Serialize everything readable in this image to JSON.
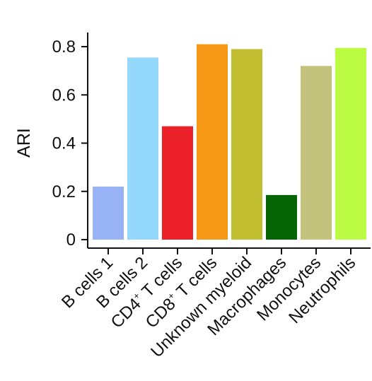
{
  "chart_data": {
    "type": "bar",
    "title": "",
    "xlabel": "",
    "ylabel": "ARI",
    "ylim": [
      0,
      0.85
    ],
    "yticks": [
      0,
      0.2,
      0.4,
      0.6,
      0.8
    ],
    "ytick_labels": [
      "0",
      "0.2",
      "0.4",
      "0.6",
      "0.8"
    ],
    "grid": false,
    "legend": "none",
    "categories": [
      {
        "label": "B cells 1",
        "base": "B cells 1",
        "sup": ""
      },
      {
        "label": "B cells 2",
        "base": "B cells 2",
        "sup": ""
      },
      {
        "label": "CD4+ T cells",
        "base": "CD4",
        "sup": "+",
        "rest": " T cells"
      },
      {
        "label": "CD8+ T cells",
        "base": "CD8",
        "sup": "+",
        "rest": " T cells"
      },
      {
        "label": "Unknown myeloid",
        "base": "Unknown myeloid",
        "sup": ""
      },
      {
        "label": "Macrophages",
        "base": "Macrophages",
        "sup": ""
      },
      {
        "label": "Monocytes",
        "base": "Monocytes",
        "sup": ""
      },
      {
        "label": "Neutrophils",
        "base": "Neutrophils",
        "sup": ""
      }
    ],
    "values": [
      0.22,
      0.755,
      0.47,
      0.81,
      0.79,
      0.185,
      0.72,
      0.795
    ],
    "colors": [
      "#97b3f6",
      "#94d8fc",
      "#ec2029",
      "#f69716",
      "#c1bf31",
      "#056404",
      "#c3c37e",
      "#bcfb43"
    ]
  }
}
